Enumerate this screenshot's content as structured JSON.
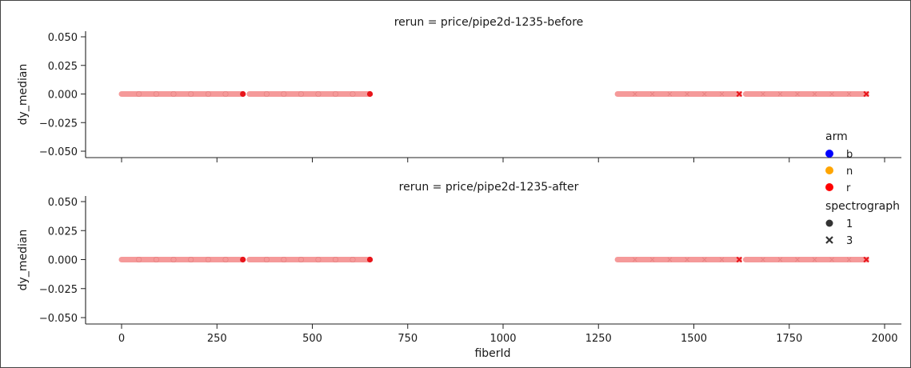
{
  "chart_data": {
    "type": "scatter",
    "xlabel": "fiberId",
    "ylabel": "dy_median",
    "xlim": [
      -100,
      2050
    ],
    "ylim": [
      -0.055,
      0.055
    ],
    "x_ticks": [
      0,
      250,
      500,
      750,
      1000,
      1250,
      1500,
      1750,
      2000
    ],
    "x_tick_labels": [
      "0",
      "250",
      "500",
      "750",
      "1000",
      "1250",
      "1500",
      "1750",
      "2000"
    ],
    "y_ticks": [
      0.05,
      0.025,
      0.0,
      -0.025,
      -0.05
    ],
    "y_tick_labels": [
      "0.050",
      "0.025",
      "0.000",
      "−0.025",
      "−0.050"
    ],
    "grid": false,
    "panels": [
      {
        "title": "rerun = price/pipe2d-1235-before",
        "series": [
          {
            "arm": "r",
            "spectrograph": "1",
            "x_range": [
              0,
              318
            ],
            "y": 0.0,
            "end_marker_x": [
              318
            ]
          },
          {
            "arm": "r",
            "spectrograph": "1",
            "x_range": [
              335,
              651
            ],
            "y": 0.0,
            "end_marker_x": [
              651
            ]
          },
          {
            "arm": "r",
            "spectrograph": "3",
            "x_range": [
              1300,
              1619
            ],
            "y": 0.0,
            "end_marker_x": [
              1619
            ]
          },
          {
            "arm": "r",
            "spectrograph": "3",
            "x_range": [
              1636,
              1952
            ],
            "y": 0.0,
            "end_marker_x": [
              1952
            ]
          }
        ]
      },
      {
        "title": "rerun = price/pipe2d-1235-after",
        "series": [
          {
            "arm": "r",
            "spectrograph": "1",
            "x_range": [
              0,
              318
            ],
            "y": 0.0,
            "end_marker_x": [
              318
            ]
          },
          {
            "arm": "r",
            "spectrograph": "1",
            "x_range": [
              335,
              651
            ],
            "y": 0.0,
            "end_marker_x": [
              651
            ]
          },
          {
            "arm": "r",
            "spectrograph": "3",
            "x_range": [
              1300,
              1619
            ],
            "y": 0.0,
            "end_marker_x": [
              1619
            ]
          },
          {
            "arm": "r",
            "spectrograph": "3",
            "x_range": [
              1636,
              1952
            ],
            "y": 0.0,
            "end_marker_x": [
              1952
            ]
          }
        ]
      }
    ],
    "legend": {
      "position": "right",
      "arm_title": "arm",
      "arm_items": [
        {
          "label": "b",
          "color": "#0000ff"
        },
        {
          "label": "n",
          "color": "#ffa500"
        },
        {
          "label": "r",
          "color": "#ff0000"
        }
      ],
      "spectrograph_title": "spectrograph",
      "spectrograph_items": [
        {
          "label": "1",
          "marker": "circle"
        },
        {
          "label": "3",
          "marker": "x"
        }
      ]
    },
    "colors": {
      "r_light": "#f59a9a",
      "r_dark": "#e8151b",
      "axis": "#222222"
    }
  }
}
